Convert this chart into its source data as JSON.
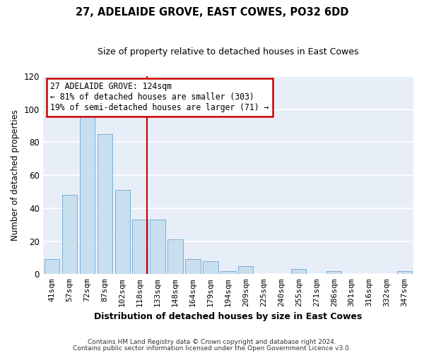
{
  "title": "27, ADELAIDE GROVE, EAST COWES, PO32 6DD",
  "subtitle": "Size of property relative to detached houses in East Cowes",
  "xlabel": "Distribution of detached houses by size in East Cowes",
  "ylabel": "Number of detached properties",
  "categories": [
    "41sqm",
    "57sqm",
    "72sqm",
    "87sqm",
    "102sqm",
    "118sqm",
    "133sqm",
    "148sqm",
    "164sqm",
    "179sqm",
    "194sqm",
    "209sqm",
    "225sqm",
    "240sqm",
    "255sqm",
    "271sqm",
    "286sqm",
    "301sqm",
    "316sqm",
    "332sqm",
    "347sqm"
  ],
  "values": [
    9,
    48,
    100,
    85,
    51,
    33,
    33,
    21,
    9,
    8,
    2,
    5,
    0,
    0,
    3,
    0,
    2,
    0,
    0,
    0,
    2
  ],
  "bar_color": "#c8dff0",
  "bar_edge_color": "#7bafd4",
  "ylim": [
    0,
    120
  ],
  "yticks": [
    0,
    20,
    40,
    60,
    80,
    100,
    120
  ],
  "reference_line_color": "#cc0000",
  "annotation_title": "27 ADELAIDE GROVE: 124sqm",
  "annotation_line1": "← 81% of detached houses are smaller (303)",
  "annotation_line2": "19% of semi-detached houses are larger (71) →",
  "annotation_box_color": "#ffffff",
  "annotation_box_edge": "#cc0000",
  "footer1": "Contains HM Land Registry data © Crown copyright and database right 2024.",
  "footer2": "Contains public sector information licensed under the Open Government Licence v3.0.",
  "fig_background": "#ffffff",
  "plot_background": "#e8eef8",
  "grid_color": "#ffffff",
  "ref_value": 124
}
